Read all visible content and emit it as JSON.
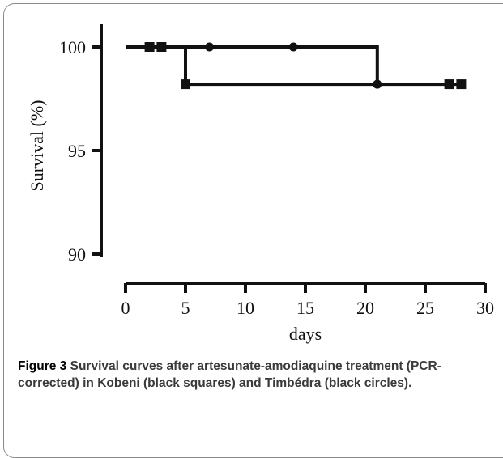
{
  "figure": {
    "label": "Figure 3",
    "caption": "Survival curves after artesunate-amodiaquine treatment (PCR-corrected) in Kobeni (black squares) and Timbédra (black circles)."
  },
  "chart_data": {
    "type": "line",
    "step": true,
    "xlabel": "days",
    "ylabel": "Survival (%)",
    "xlim": [
      0,
      30
    ],
    "ylim": [
      90,
      100
    ],
    "xticks": [
      0,
      5,
      10,
      15,
      20,
      25,
      30
    ],
    "yticks": [
      90,
      95,
      100
    ],
    "grid": false,
    "legend": "none",
    "series": [
      {
        "marker": "square",
        "color": "#111111",
        "steps": [
          [
            0,
            100
          ],
          [
            5,
            98.2
          ],
          [
            28,
            98.2
          ]
        ],
        "censored": [
          [
            2,
            100
          ],
          [
            3,
            100
          ],
          [
            5,
            98.2
          ],
          [
            27,
            98.2
          ],
          [
            28,
            98.2
          ]
        ]
      },
      {
        "marker": "circle",
        "color": "#111111",
        "steps": [
          [
            0,
            100
          ],
          [
            21,
            98.2
          ],
          [
            21,
            98.2
          ]
        ],
        "censored": [
          [
            7,
            100
          ],
          [
            14,
            100
          ],
          [
            21,
            98.2
          ]
        ]
      }
    ]
  }
}
